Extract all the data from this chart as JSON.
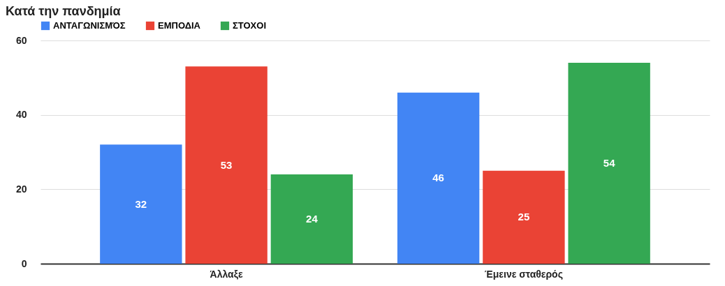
{
  "chart_data": {
    "type": "bar",
    "title": "Κατά την πανδημία",
    "categories": [
      "Άλλαξε",
      "Έμεινε σταθερός"
    ],
    "series": [
      {
        "name": "ΑΝΤΑΓΩΝΙΣΜΌΣ",
        "color": "#4285f4",
        "values": [
          32,
          46
        ]
      },
      {
        "name": "ΕΜΠΟΔΙΑ",
        "color": "#ea4335",
        "values": [
          53,
          25
        ]
      },
      {
        "name": "ΣΤΟΧΟΙ",
        "color": "#34a853",
        "values": [
          24,
          54
        ]
      }
    ],
    "ylim": [
      0,
      60
    ],
    "yticks": [
      0,
      20,
      40,
      60
    ],
    "grid": "y",
    "legend": "top",
    "data_labels": true
  }
}
